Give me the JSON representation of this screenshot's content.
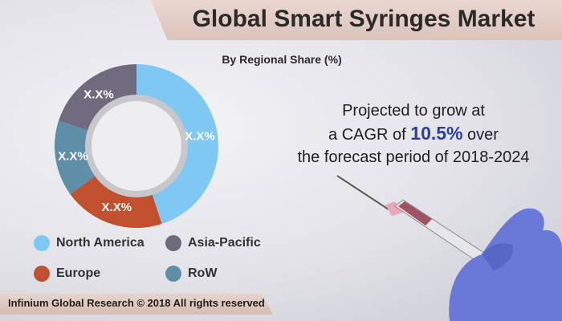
{
  "title": "Global Smart Syringes Market",
  "chart_data": {
    "type": "pie",
    "subtitle": "By Regional Share (%)",
    "categories": [
      "North America",
      "Europe",
      "RoW",
      "Asia-Pacific"
    ],
    "values": [
      45,
      20,
      15,
      20
    ],
    "data_labels": [
      "X.X%",
      "X.X%",
      "X.X%",
      "X.X%"
    ],
    "colors": [
      "#7fc8f4",
      "#c0502e",
      "#5f8fa8",
      "#706a7e"
    ],
    "legend_placement": "bottom"
  },
  "legend": {
    "items": [
      {
        "label": "North America",
        "color": "#7fc8f4"
      },
      {
        "label": "Asia-Pacific",
        "color": "#706a7e"
      },
      {
        "label": "Europe",
        "color": "#c0502e"
      },
      {
        "label": "RoW",
        "color": "#5f8fa8"
      }
    ]
  },
  "projection": {
    "line1": "Projected to grow at",
    "line2_prefix": "a CAGR of ",
    "cagr": "10.5%",
    "line2_suffix": " over",
    "line3": "the forecast period of 2018-2024"
  },
  "footer": "Infinium Global Research © 2018 All rights reserved"
}
